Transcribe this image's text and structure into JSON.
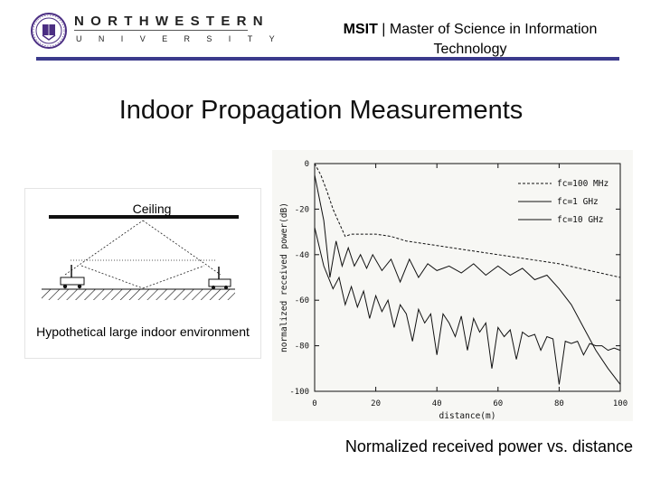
{
  "header": {
    "logo": {
      "word1": "NORTHWESTERN",
      "word2": "UNIVERSITY",
      "seal_icon": "university-seal-icon"
    },
    "program_bold": "MSIT",
    "program_separator": " | ",
    "program_rest": "Master of Science in Information Technology",
    "accent_color": "#3b3a8c"
  },
  "slide": {
    "title": "Indoor Propagation Measurements",
    "caption": "Normalized received power vs. distance"
  },
  "environment_figure": {
    "ceiling_label": "Ceiling",
    "caption": "Hypothetical large indoor environment"
  },
  "chart_data": {
    "type": "line",
    "title": "",
    "xlabel": "distance(m)",
    "ylabel": "normalized received power(dB)",
    "xlim": [
      0,
      100
    ],
    "ylim": [
      -100,
      0
    ],
    "xticks": [
      "0",
      "20",
      "40",
      "60",
      "80",
      "100"
    ],
    "yticks": [
      "0",
      "-20",
      "-40",
      "-60",
      "-80",
      "-100"
    ],
    "legend_position": "top-right",
    "series": [
      {
        "name": "fc=100 MHz",
        "style": "dashed",
        "x": [
          0,
          2,
          4,
          6,
          8,
          10,
          12,
          14,
          16,
          20,
          25,
          30,
          40,
          50,
          60,
          70,
          80,
          90,
          100
        ],
        "y": [
          0,
          -5,
          -12,
          -20,
          -26,
          -32,
          -31,
          -31,
          -31,
          -31,
          -32,
          -34,
          -36,
          -38,
          -40,
          -42,
          -44,
          -47,
          -50
        ]
      },
      {
        "name": "fc=1 GHz",
        "style": "solid",
        "x": [
          0,
          3,
          5,
          7,
          9,
          11,
          13,
          15,
          17,
          19,
          22,
          25,
          28,
          31,
          34,
          37,
          40,
          44,
          48,
          52,
          56,
          60,
          64,
          68,
          72,
          76,
          80,
          84,
          88,
          92,
          96,
          100
        ],
        "y": [
          -5,
          -25,
          -50,
          -34,
          -45,
          -37,
          -45,
          -40,
          -46,
          -40,
          -47,
          -42,
          -52,
          -42,
          -50,
          -44,
          -47,
          -45,
          -48,
          -44,
          -49,
          -45,
          -49,
          -46,
          -51,
          -49,
          -55,
          -62,
          -72,
          -82,
          -90,
          -97
        ]
      },
      {
        "name": "fc=10 GHz",
        "style": "solid",
        "x": [
          0,
          3,
          6,
          8,
          10,
          12,
          14,
          16,
          18,
          20,
          22,
          24,
          26,
          28,
          30,
          32,
          34,
          36,
          38,
          40,
          42,
          44,
          46,
          48,
          50,
          52,
          54,
          56,
          58,
          60,
          62,
          64,
          66,
          68,
          70,
          72,
          74,
          76,
          78,
          80,
          82,
          84,
          86,
          88,
          90,
          92,
          94,
          96,
          98,
          100
        ],
        "y": [
          -28,
          -45,
          -55,
          -50,
          -62,
          -54,
          -63,
          -56,
          -68,
          -58,
          -65,
          -60,
          -72,
          -62,
          -66,
          -78,
          -64,
          -70,
          -66,
          -84,
          -66,
          -70,
          -76,
          -67,
          -82,
          -68,
          -74,
          -70,
          -90,
          -72,
          -76,
          -73,
          -86,
          -74,
          -76,
          -75,
          -82,
          -76,
          -77,
          -97,
          -78,
          -79,
          -78,
          -84,
          -79,
          -80,
          -80,
          -82,
          -81,
          -82
        ]
      }
    ]
  }
}
